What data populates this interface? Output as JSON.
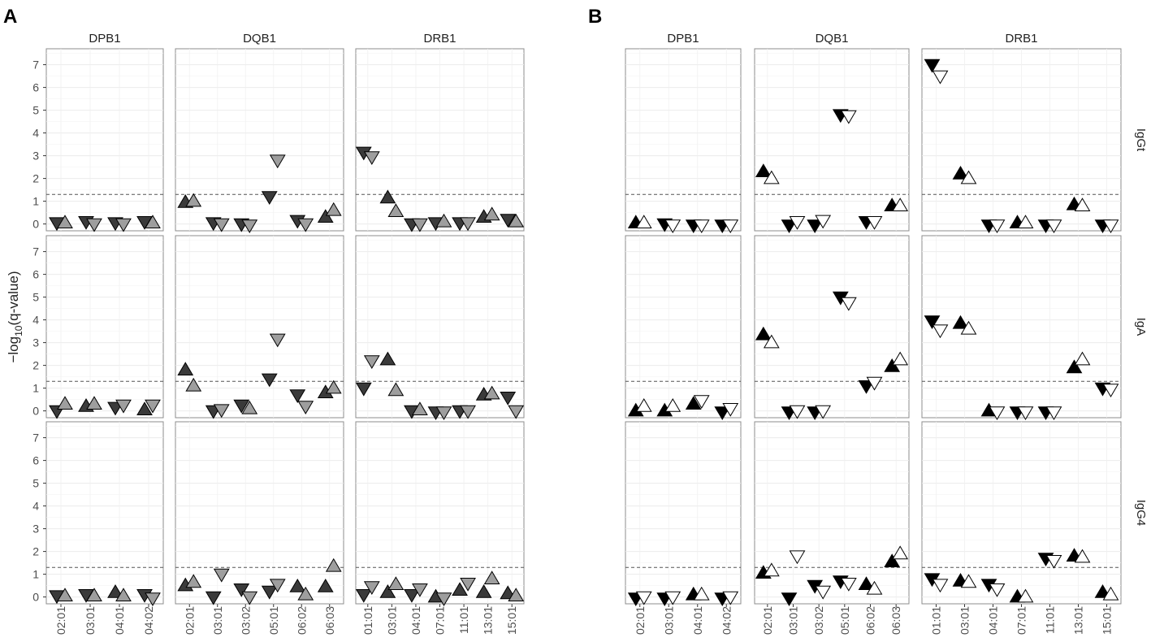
{
  "chart_data": {
    "type": "scatter",
    "ylabel": "−log₁₀(q-value)",
    "ylabel_main": "−log",
    "ylabel_sub": "10",
    "ylabel_tail": "(q-value)",
    "ylim": [
      -0.3,
      7.7
    ],
    "yticks": [
      0,
      1,
      2,
      3,
      4,
      5,
      6,
      7
    ],
    "threshold": 1.3,
    "colors": {
      "A": {
        "primary": "#3a3a3a",
        "secondary": "#9e9e9e"
      },
      "B": {
        "primary": "#000000",
        "secondary": "#ffffff"
      }
    },
    "marker_legend": {
      "up": "triangle pointing up",
      "down": "triangle pointing down"
    },
    "panels": [
      {
        "label": "A",
        "genes": [
          {
            "name": "DPB1",
            "alleles": [
              "02:01",
              "03:01",
              "04:01",
              "04:02"
            ]
          },
          {
            "name": "DQB1",
            "alleles": [
              "02:01",
              "03:01",
              "03:02",
              "05:01",
              "06:02",
              "06:03"
            ]
          },
          {
            "name": "DRB1",
            "alleles": [
              "01:01",
              "03:01",
              "04:01",
              "07:01",
              "11:01",
              "13:01",
              "15:01"
            ]
          }
        ],
        "rows": [
          "IgGt",
          "IgA",
          "IgG4"
        ],
        "points": {
          "IgGt": {
            "DPB1": [
              [
                0.05,
                "d",
                0.05,
                "u"
              ],
              [
                0.1,
                "d",
                0.0,
                "d"
              ],
              [
                0.05,
                "d",
                0.0,
                "d"
              ],
              [
                0.1,
                "d",
                0.05,
                "u"
              ]
            ],
            "DQB1": [
              [
                0.95,
                "u",
                1.0,
                "u"
              ],
              [
                0.05,
                "d",
                0.0,
                "d"
              ],
              [
                0.0,
                "d",
                -0.05,
                "d"
              ],
              [
                1.2,
                "d",
                2.8,
                "d"
              ],
              [
                0.15,
                "d",
                0.0,
                "d"
              ],
              [
                0.3,
                "u",
                0.6,
                "u"
              ]
            ],
            "DRB1": [
              [
                3.15,
                "d",
                2.95,
                "d"
              ],
              [
                1.15,
                "u",
                0.55,
                "u"
              ],
              [
                0.0,
                "d",
                0.0,
                "d"
              ],
              [
                0.05,
                "d",
                0.1,
                "u"
              ],
              [
                0.05,
                "d",
                0.05,
                "d"
              ],
              [
                0.3,
                "u",
                0.4,
                "u"
              ],
              [
                0.2,
                "d",
                0.1,
                "u"
              ]
            ]
          },
          "IgA": {
            "DPB1": [
              [
                0.0,
                "d",
                0.3,
                "u"
              ],
              [
                0.2,
                "u",
                0.3,
                "u"
              ],
              [
                0.15,
                "d",
                0.25,
                "d"
              ],
              [
                0.05,
                "u",
                0.25,
                "d"
              ]
            ],
            "DQB1": [
              [
                1.8,
                "u",
                1.1,
                "u"
              ],
              [
                0.0,
                "d",
                0.05,
                "d"
              ],
              [
                0.25,
                "d",
                0.1,
                "u"
              ],
              [
                1.4,
                "d",
                3.15,
                "d"
              ],
              [
                0.7,
                "d",
                0.2,
                "d"
              ],
              [
                0.8,
                "u",
                1.0,
                "u"
              ]
            ],
            "DRB1": [
              [
                1.0,
                "d",
                2.2,
                "d"
              ],
              [
                2.25,
                "u",
                0.9,
                "u"
              ],
              [
                0.0,
                "d",
                0.05,
                "u"
              ],
              [
                -0.05,
                "d",
                -0.05,
                "d"
              ],
              [
                0.0,
                "d",
                0.0,
                "d"
              ],
              [
                0.7,
                "u",
                0.75,
                "u"
              ],
              [
                0.6,
                "d",
                0.0,
                "d"
              ]
            ]
          },
          "IgG4": {
            "DPB1": [
              [
                0.05,
                "d",
                0.05,
                "u"
              ],
              [
                0.1,
                "d",
                0.05,
                "u"
              ],
              [
                0.2,
                "u",
                0.05,
                "u"
              ],
              [
                0.1,
                "d",
                -0.05,
                "d"
              ]
            ],
            "DQB1": [
              [
                0.5,
                "u",
                0.65,
                "u"
              ],
              [
                0.0,
                "d",
                1.0,
                "d"
              ],
              [
                0.35,
                "d",
                0.0,
                "d"
              ],
              [
                0.25,
                "d",
                0.55,
                "d"
              ],
              [
                0.45,
                "u",
                0.1,
                "u"
              ],
              [
                0.45,
                "u",
                1.35,
                "u"
              ]
            ],
            "DRB1": [
              [
                0.1,
                "d",
                0.45,
                "d"
              ],
              [
                0.2,
                "u",
                0.55,
                "u"
              ],
              [
                0.1,
                "d",
                0.35,
                "d"
              ],
              [
                0.0,
                "u",
                -0.05,
                "d"
              ],
              [
                0.3,
                "u",
                0.6,
                "d"
              ],
              [
                0.2,
                "u",
                0.8,
                "u"
              ],
              [
                0.15,
                "u",
                0.05,
                "u"
              ]
            ]
          }
        }
      },
      {
        "label": "B",
        "genes": [
          {
            "name": "DPB1",
            "alleles": [
              "02:01",
              "03:01",
              "04:01",
              "04:02"
            ]
          },
          {
            "name": "DQB1",
            "alleles": [
              "02:01",
              "03:01",
              "03:02",
              "05:01",
              "06:02",
              "06:03"
            ]
          },
          {
            "name": "DRB1",
            "alleles": [
              "01:01",
              "03:01",
              "04:01",
              "07:01",
              "11:01",
              "13:01",
              "15:01"
            ]
          }
        ],
        "rows": [
          "IgGt",
          "IgA",
          "IgG4"
        ],
        "points": {
          "IgGt": {
            "DPB1": [
              [
                0.05,
                "u",
                0.05,
                "u"
              ],
              [
                0.0,
                "d",
                -0.05,
                "d"
              ],
              [
                -0.05,
                "d",
                -0.05,
                "d"
              ],
              [
                -0.05,
                "d",
                -0.05,
                "d"
              ]
            ],
            "DQB1": [
              [
                2.3,
                "u",
                2.0,
                "u"
              ],
              [
                -0.05,
                "d",
                0.1,
                "d"
              ],
              [
                -0.05,
                "d",
                0.15,
                "d"
              ],
              [
                4.8,
                "d",
                4.75,
                "d"
              ],
              [
                0.1,
                "d",
                0.1,
                "d"
              ],
              [
                0.8,
                "u",
                0.8,
                "u"
              ]
            ],
            "DRB1": [
              [
                7.0,
                "d",
                6.5,
                "d"
              ],
              [
                2.2,
                "u",
                2.0,
                "u"
              ],
              [
                -0.05,
                "d",
                -0.05,
                "d"
              ],
              [
                0.05,
                "u",
                0.05,
                "u"
              ],
              [
                -0.05,
                "d",
                -0.05,
                "d"
              ],
              [
                0.85,
                "u",
                0.8,
                "u"
              ],
              [
                -0.05,
                "d",
                -0.05,
                "d"
              ]
            ]
          },
          "IgA": {
            "DPB1": [
              [
                0.0,
                "u",
                0.2,
                "u"
              ],
              [
                0.0,
                "u",
                0.2,
                "u"
              ],
              [
                0.3,
                "u",
                0.45,
                "d"
              ],
              [
                -0.05,
                "d",
                0.1,
                "d"
              ]
            ],
            "DQB1": [
              [
                3.35,
                "u",
                3.0,
                "u"
              ],
              [
                -0.05,
                "d",
                0.0,
                "d"
              ],
              [
                -0.05,
                "d",
                0.0,
                "d"
              ],
              [
                5.0,
                "d",
                4.75,
                "d"
              ],
              [
                1.1,
                "d",
                1.25,
                "d"
              ],
              [
                1.95,
                "u",
                2.25,
                "u"
              ]
            ],
            "DRB1": [
              [
                3.95,
                "d",
                3.55,
                "d"
              ],
              [
                3.85,
                "u",
                3.6,
                "u"
              ],
              [
                0.0,
                "u",
                -0.05,
                "d"
              ],
              [
                -0.05,
                "d",
                -0.05,
                "d"
              ],
              [
                -0.05,
                "d",
                -0.05,
                "d"
              ],
              [
                1.9,
                "u",
                2.25,
                "u"
              ],
              [
                1.0,
                "d",
                0.95,
                "d"
              ]
            ]
          },
          "IgG4": {
            "DPB1": [
              [
                -0.05,
                "d",
                0.0,
                "d"
              ],
              [
                -0.05,
                "d",
                0.0,
                "d"
              ],
              [
                0.1,
                "u",
                0.1,
                "u"
              ],
              [
                -0.05,
                "d",
                0.0,
                "d"
              ]
            ],
            "DQB1": [
              [
                1.05,
                "u",
                1.15,
                "u"
              ],
              [
                -0.05,
                "d",
                1.8,
                "d"
              ],
              [
                0.5,
                "d",
                0.25,
                "d"
              ],
              [
                0.7,
                "d",
                0.6,
                "d"
              ],
              [
                0.55,
                "u",
                0.35,
                "u"
              ],
              [
                1.55,
                "u",
                1.9,
                "u"
              ]
            ],
            "DRB1": [
              [
                0.8,
                "d",
                0.55,
                "d"
              ],
              [
                0.7,
                "u",
                0.65,
                "u"
              ],
              [
                0.55,
                "d",
                0.35,
                "d"
              ],
              [
                0.0,
                "u",
                0.0,
                "u"
              ],
              [
                1.7,
                "d",
                1.6,
                "d"
              ],
              [
                1.8,
                "u",
                1.75,
                "u"
              ],
              [
                0.2,
                "u",
                0.1,
                "u"
              ]
            ]
          }
        }
      }
    ]
  }
}
